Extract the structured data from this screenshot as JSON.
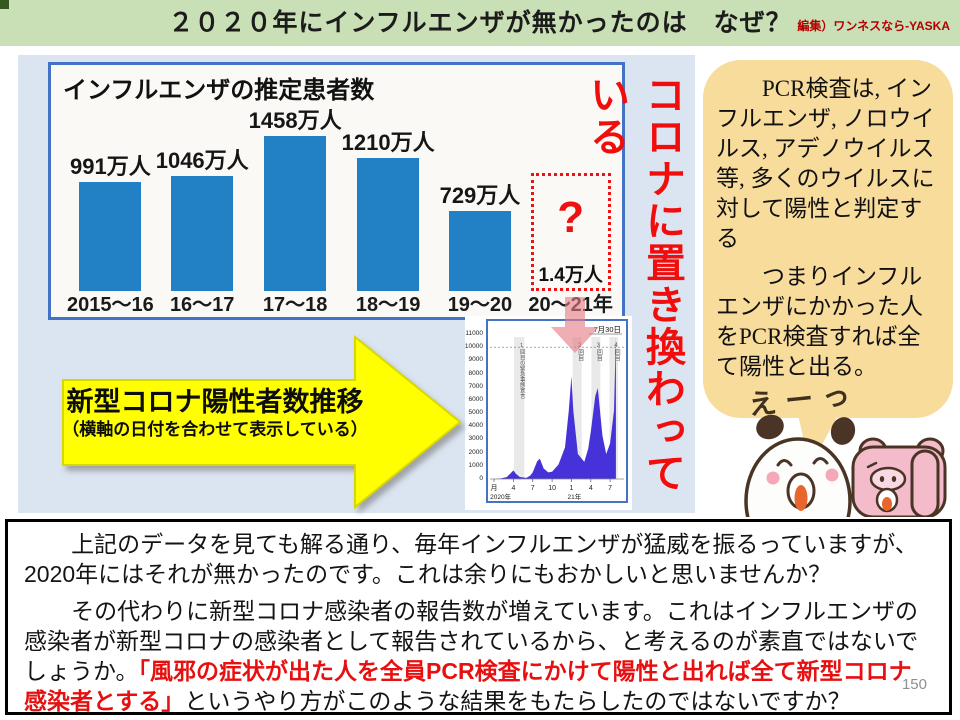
{
  "header": {
    "title": "２０２０年にインフルエンザが無かったのは　なぜ？",
    "credit": "編集）ワンネスなら-YASKA"
  },
  "chart_data": [
    {
      "type": "bar",
      "title": "インフルエンザの推定患者数",
      "categories": [
        "2015〜16",
        "16〜17",
        "17〜18",
        "18〜19",
        "19〜20",
        "20〜21年"
      ],
      "values": [
        991,
        1046,
        1458,
        1210,
        729,
        1.4
      ],
      "value_labels": [
        "991万人",
        "1046万人",
        "1458万人",
        "1210万人",
        "729万人",
        "1.4万人"
      ],
      "unit": "万人",
      "ylim": [
        0,
        1500
      ],
      "bar_color": "#2181c4",
      "missing_last_bar": true,
      "missing_marker": "?"
    },
    {
      "type": "area",
      "title": "新型コロナ陽性者数推移",
      "y_unit": "人",
      "y_ticks": [
        "11000",
        "10000",
        "9000",
        "8000",
        "7000",
        "6000",
        "5000",
        "4000",
        "3000",
        "2000",
        "1000",
        "0"
      ],
      "ylim": [
        0,
        11000
      ],
      "x_ticks": [
        "月",
        "4",
        "7",
        "10",
        "1",
        "4",
        "7"
      ],
      "x_tick_months": [
        0,
        3,
        6,
        9,
        12,
        15,
        18
      ],
      "year_labels": [
        {
          "label": "2020年",
          "month": -0.6
        },
        {
          "label": "21年",
          "month": 11.4
        }
      ],
      "date_label": "7月30日",
      "dotted_line_value": 10000,
      "emergency_bands": [
        {
          "label": "1回目の緊急事態宣言",
          "start_month": 3.1,
          "end_month": 4.7
        },
        {
          "label": "2回目",
          "start_month": 12.2,
          "end_month": 13.6
        },
        {
          "label": "3回目",
          "start_month": 15.1,
          "end_month": 16.5
        },
        {
          "label": "4回目",
          "start_month": 17.9,
          "end_month": 19.2
        }
      ],
      "points": [
        [
          0,
          20
        ],
        [
          1,
          40
        ],
        [
          2,
          150
        ],
        [
          2.6,
          450
        ],
        [
          3,
          650
        ],
        [
          3.4,
          400
        ],
        [
          4,
          150
        ],
        [
          5,
          80
        ],
        [
          5.6,
          250
        ],
        [
          6,
          500
        ],
        [
          6.7,
          1350
        ],
        [
          7.1,
          1550
        ],
        [
          7.7,
          800
        ],
        [
          8.4,
          500
        ],
        [
          9,
          550
        ],
        [
          10,
          1100
        ],
        [
          11,
          2400
        ],
        [
          11.6,
          5200
        ],
        [
          12,
          7800
        ],
        [
          12.3,
          5200
        ],
        [
          13,
          1900
        ],
        [
          14,
          1300
        ],
        [
          14.6,
          2300
        ],
        [
          15,
          3600
        ],
        [
          15.7,
          6300
        ],
        [
          16.1,
          6900
        ],
        [
          16.8,
          3300
        ],
        [
          17.4,
          1900
        ],
        [
          18,
          2700
        ],
        [
          18.6,
          5200
        ],
        [
          18.9,
          10800
        ]
      ],
      "area_color": "#4632d9"
    }
  ],
  "callout": {
    "vertical_text": "コロナに置き換わっている"
  },
  "arrow_label": {
    "title": "新型コロナ陽性者数推移",
    "subtitle": "（横軸の日付を合わせて表示している）"
  },
  "bubble": {
    "para1": "　PCR検査は, インフルエンザ, ノロウイルス, アデノウイルス等, 多くのウイルスに対して陽性と判定する",
    "para2": "　つまりインフルエンザにかかった人をPCR検査すれば全て陽性と出る。"
  },
  "characters": {
    "exclamation": "えーっ"
  },
  "commentary": {
    "para1": "　上記のデータを見ても解る通り、毎年インフルエンザが猛威を振るっていますが、2020年にはそれが無かったのです。これは余りにもおかしいと思いませんか？",
    "para2_before": "　その代わりに新型コロナ感染者の報告数が増えています。これはインフルエンザの感染者が新型コロナの感染者として報告されているから、と考えるのが素直ではないでしょうか。",
    "para2_red": "「風邪の症状が出た人を全員PCR検査にかけて陽性と出れば全て新型コロナ感染者とする」",
    "para2_after": "というやり方がこのような結果をもたらしたのではないですか？"
  },
  "page_number": "150",
  "colors": {
    "header_green": "#c9dfb5",
    "corner_green": "#37591f",
    "panel_blue": "#dbe5f1",
    "border_blue": "#4472c4",
    "bar_blue": "#2181c4",
    "highlight_red": "#ee1111",
    "arrow_yellow": "#ffff00",
    "bubble_cream": "#f8dc9c",
    "covid_purple": "#4632d9",
    "pink_arrow": "#e57c84"
  }
}
